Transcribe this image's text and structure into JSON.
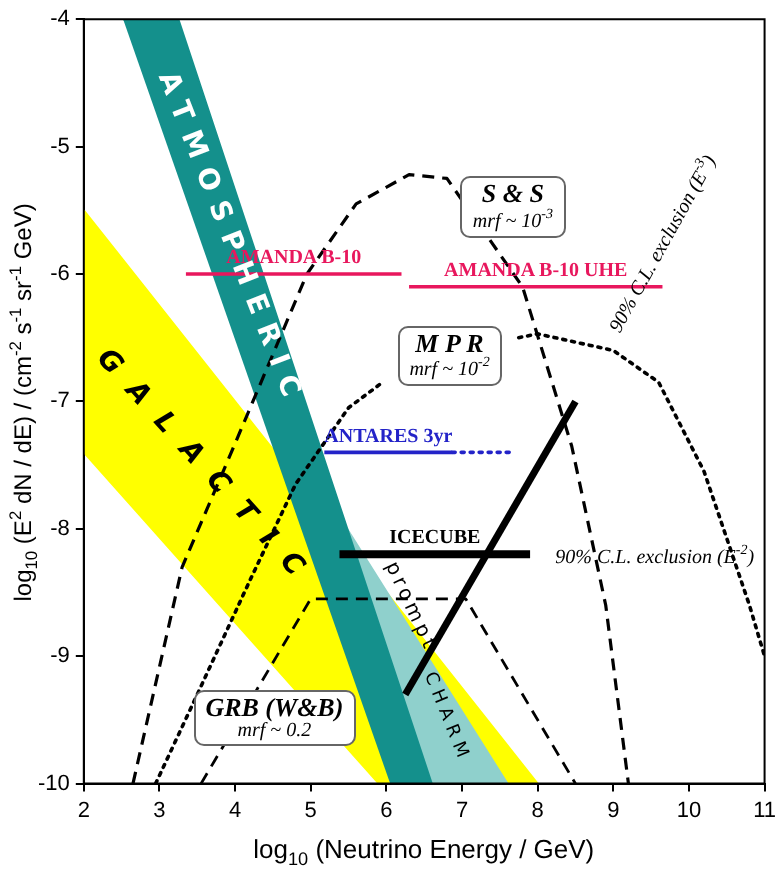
{
  "chart_data": {
    "type": "line",
    "xlabel": "log$_{10}$ (Neutrino Energy / GeV)",
    "ylabel": "log$_{10}$ (E$^{2}$ dN / dE) / (cm$^{-2}$ s$^{-1}$ sr$^{-1}$ GeV)",
    "xlim": [
      2,
      11
    ],
    "ylim": [
      -10,
      -4
    ],
    "xticks": [
      2,
      3,
      4,
      5,
      6,
      7,
      8,
      9,
      10,
      11
    ],
    "yticks": [
      -10,
      -9,
      -8,
      -7,
      -6,
      -5,
      -4
    ],
    "grid": false,
    "legend": false,
    "marker": "none",
    "series": [
      {
        "type": "area",
        "color": "#ffff00",
        "x": [
          2,
          8,
          5.9,
          2
        ],
        "values": [
          -5.5,
          -10,
          -10,
          -7.4
        ]
      },
      {
        "type": "area",
        "color": "#8fd0cc",
        "x": [
          5.48,
          7.6,
          6.6
        ],
        "values": [
          -8,
          -10,
          -10
        ]
      },
      {
        "type": "area",
        "color": "#14908c",
        "x": [
          2.52,
          3.25,
          6.6,
          6.05
        ],
        "values": [
          -4,
          -4,
          -10,
          -10
        ]
      },
      {
        "color": "#000000",
        "line_style": "dashed",
        "x": [
          2.65,
          3.3,
          3.95,
          4.95,
          5.6,
          6.3,
          6.8,
          7.8,
          8.45,
          8.9,
          9.2
        ],
        "values": [
          -10,
          -8.3,
          -7.4,
          -6.0,
          -5.45,
          -5.22,
          -5.25,
          -6.1,
          -7.35,
          -8.6,
          -10
        ]
      },
      {
        "color": "#000000",
        "line_style": "dotted",
        "x": [
          2.95,
          3.5,
          4.2,
          4.8,
          5.5,
          5.95,
          6.5,
          7.75,
          8.0,
          9.0,
          9.6,
          10.2,
          10.8,
          11
        ],
        "values": [
          -10,
          -9.3,
          -8.4,
          -7.65,
          -7.05,
          -6.85,
          null,
          -6.5,
          -6.47,
          -6.6,
          -6.85,
          -7.55,
          -8.6,
          -9.0
        ]
      },
      {
        "color": "#000000",
        "line_style": "dashed",
        "x": [
          3.55,
          5.0,
          7.05,
          8.5
        ],
        "values": [
          -10,
          -8.55,
          -8.55,
          -10
        ]
      },
      {
        "name": "AMANDA B-10",
        "color": "#e8175d",
        "line_style": "solid",
        "x": [
          3.35,
          6.2
        ],
        "values": [
          -6.0,
          -6.0
        ]
      },
      {
        "name": "AMANDA B-10 UHE",
        "color": "#e8175d",
        "line_style": "solid",
        "x": [
          6.3,
          9.65
        ],
        "values": [
          -6.1,
          -6.1
        ]
      },
      {
        "name": "ANTARES 3yr",
        "color": "#2323c8",
        "line_style": "solid",
        "x": [
          5.18,
          6.87
        ],
        "values": [
          -7.4,
          -7.4
        ]
      },
      {
        "color": "#2323c8",
        "line_style": "dotted",
        "x": [
          6.87,
          7.68
        ],
        "values": [
          -7.4,
          -7.4
        ]
      },
      {
        "name": "ICECUBE",
        "color": "#000000",
        "line_style": "solid",
        "x": [
          5.38,
          7.9
        ],
        "values": [
          -8.2,
          -8.2
        ]
      },
      {
        "color": "#000000",
        "line_style": "solid",
        "x": [
          6.25,
          8.5
        ],
        "values": [
          -9.3,
          -7.0
        ]
      }
    ],
    "annotations": [
      "ATMOSPHERIC",
      "GALACTIC",
      "prompt",
      "CHARM",
      "S & S\nmrf ~ 10$^{-3}$",
      "M P R\nmrf ~ 10$^{-2}$",
      "GRB (W&B)\nmrf ~ 0.2",
      "90% C.L. exclusion (E$^{-3}$)",
      "90% C.L. exclusion (E$^{-2}$)"
    ]
  }
}
